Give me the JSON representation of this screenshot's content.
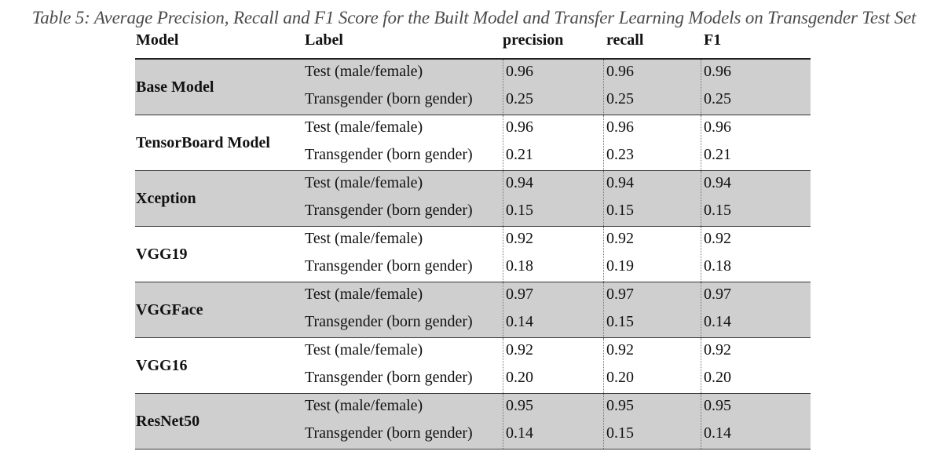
{
  "caption": "Table 5: Average Precision, Recall and F1 Score for the Built Model and Transfer Learning Models on Transgender Test Set",
  "headers": {
    "model": "Model",
    "label": "Label",
    "precision": "precision",
    "recall": "recall",
    "f1": "F1"
  },
  "rows": [
    {
      "model": "Base Model",
      "shaded": true,
      "entries": [
        {
          "label": "Test (male/female)",
          "precision": "0.96",
          "recall": "0.96",
          "f1": "0.96"
        },
        {
          "label": "Transgender (born gender)",
          "precision": "0.25",
          "recall": "0.25",
          "f1": "0.25"
        }
      ]
    },
    {
      "model": "TensorBoard Model",
      "shaded": false,
      "entries": [
        {
          "label": "Test (male/female)",
          "precision": "0.96",
          "recall": "0.96",
          "f1": "0.96"
        },
        {
          "label": "Transgender (born gender)",
          "precision": "0.21",
          "recall": "0.23",
          "f1": "0.21"
        }
      ]
    },
    {
      "model": "Xception",
      "shaded": true,
      "entries": [
        {
          "label": "Test (male/female)",
          "precision": "0.94",
          "recall": "0.94",
          "f1": "0.94"
        },
        {
          "label": "Transgender (born gender)",
          "precision": "0.15",
          "recall": "0.15",
          "f1": "0.15"
        }
      ]
    },
    {
      "model": "VGG19",
      "shaded": false,
      "entries": [
        {
          "label": "Test (male/female)",
          "precision": "0.92",
          "recall": "0.92",
          "f1": "0.92"
        },
        {
          "label": "Transgender (born gender)",
          "precision": "0.18",
          "recall": "0.19",
          "f1": "0.18"
        }
      ]
    },
    {
      "model": "VGGFace",
      "shaded": true,
      "entries": [
        {
          "label": "Test (male/female)",
          "precision": "0.97",
          "recall": "0.97",
          "f1": "0.97"
        },
        {
          "label": "Transgender (born gender)",
          "precision": "0.14",
          "recall": "0.15",
          "f1": "0.14"
        }
      ]
    },
    {
      "model": "VGG16",
      "shaded": false,
      "entries": [
        {
          "label": "Test (male/female)",
          "precision": "0.92",
          "recall": "0.92",
          "f1": "0.92"
        },
        {
          "label": "Transgender (born gender)",
          "precision": "0.20",
          "recall": "0.20",
          "f1": "0.20"
        }
      ]
    },
    {
      "model": "ResNet50",
      "shaded": true,
      "entries": [
        {
          "label": "Test (male/female)",
          "precision": "0.95",
          "recall": "0.95",
          "f1": "0.95"
        },
        {
          "label": "Transgender (born gender)",
          "precision": "0.14",
          "recall": "0.15",
          "f1": "0.14"
        }
      ]
    }
  ]
}
